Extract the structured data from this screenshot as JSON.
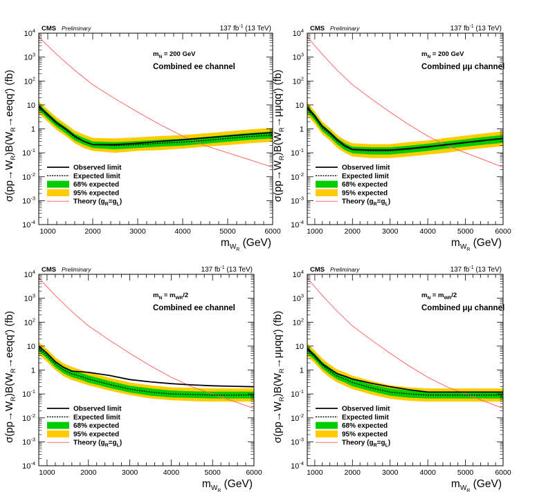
{
  "header": {
    "experiment": "CMS",
    "status": "Preliminary",
    "lumi": "137 fb",
    "lumi_exp": "-1",
    "energy": "(13 TeV)"
  },
  "axis": {
    "xlabel_main": "m",
    "xlabel_sub": "W",
    "xlabel_subsub": "R",
    "xlabel_unit": "(GeV)",
    "xticks": [
      "1000",
      "2000",
      "3000",
      "4000",
      "5000",
      "6000"
    ],
    "yticks": [
      {
        "base": "10",
        "exp": "-4"
      },
      {
        "base": "10",
        "exp": "-3"
      },
      {
        "base": "10",
        "exp": "-2"
      },
      {
        "base": "10",
        "exp": "-1"
      },
      {
        "base": "1",
        "exp": ""
      },
      {
        "base": "10",
        "exp": ""
      },
      {
        "base": "10",
        "exp": "2"
      },
      {
        "base": "10",
        "exp": "3"
      },
      {
        "base": "10",
        "exp": "4"
      }
    ]
  },
  "legend": {
    "observed": "Observed limit",
    "expected": "Expected limit",
    "band68": "68% expected",
    "band95": "95% expected",
    "theory_prefix": "Theory (g",
    "theory_r": "R",
    "theory_mid": "=g",
    "theory_l": "L",
    "theory_suffix": ")"
  },
  "colors": {
    "band68": "#00cc00",
    "band95": "#ffcc00",
    "theory": "#ff6666",
    "observed": "#000000"
  },
  "panels": [
    {
      "mass_main": "m",
      "mass_sub": "N",
      "mass_rest": " = 200 GeV",
      "mass_sub2": "",
      "mass_tail": "",
      "channel": "Combined ee channel",
      "ylabel_a": "σ(pp→W",
      "ylabel_b": "R",
      "ylabel_c": ")B(W",
      "ylabel_d": "R",
      "ylabel_e": "→eeqq",
      "ylabel_f": "') (fb)"
    },
    {
      "mass_main": "m",
      "mass_sub": "N",
      "mass_rest": " = 200 GeV",
      "mass_sub2": "",
      "mass_tail": "",
      "channel": "Combined μμ channel",
      "ylabel_a": "σ(pp→W",
      "ylabel_b": "R",
      "ylabel_c": ")B(W",
      "ylabel_d": "R",
      "ylabel_e": "→μμqq",
      "ylabel_f": "') (fb)"
    },
    {
      "mass_main": "m",
      "mass_sub": "N",
      "mass_rest": " = m",
      "mass_sub2": "WR",
      "mass_tail": "/2",
      "channel": "Combined ee channel",
      "ylabel_a": "σ(pp→W",
      "ylabel_b": "R",
      "ylabel_c": ")B(W",
      "ylabel_d": "R",
      "ylabel_e": "→eeqq",
      "ylabel_f": "') (fb)"
    },
    {
      "mass_main": "m",
      "mass_sub": "N",
      "mass_rest": " = m",
      "mass_sub2": "WR",
      "mass_tail": "/2",
      "channel": "Combined μμ channel",
      "ylabel_a": "σ(pp→W",
      "ylabel_b": "R",
      "ylabel_c": ")B(W",
      "ylabel_d": "R",
      "ylabel_e": "→μμqq",
      "ylabel_f": "') (fb)"
    }
  ],
  "chart_data": [
    {
      "type": "line",
      "xlabel": "m_WR (GeV)",
      "ylabel": "σ(pp→W_R)B(W_R→eeqq') (fb)",
      "xlim": [
        800,
        6000
      ],
      "ylim": [
        0.0001,
        10000
      ],
      "yscale": "log",
      "x": [
        800,
        1000,
        1200,
        1400,
        1600,
        1800,
        2000,
        2500,
        3000,
        3500,
        4000,
        4500,
        5000,
        5500,
        6000
      ],
      "series": [
        {
          "name": "Observed limit",
          "values": [
            9,
            4,
            1.8,
            1,
            0.5,
            0.3,
            0.22,
            0.22,
            0.25,
            0.3,
            0.35,
            0.42,
            0.5,
            0.6,
            0.7
          ]
        },
        {
          "name": "Expected limit",
          "values": [
            8,
            3.5,
            1.6,
            0.9,
            0.45,
            0.3,
            0.22,
            0.2,
            0.22,
            0.25,
            0.28,
            0.33,
            0.4,
            0.48,
            0.55
          ]
        },
        {
          "name": "68% expected",
          "low": [
            6,
            2.6,
            1.2,
            0.65,
            0.33,
            0.22,
            0.16,
            0.14,
            0.16,
            0.18,
            0.2,
            0.24,
            0.29,
            0.35,
            0.4
          ],
          "high": [
            11,
            4.8,
            2.2,
            1.2,
            0.62,
            0.42,
            0.3,
            0.28,
            0.31,
            0.35,
            0.39,
            0.46,
            0.56,
            0.67,
            0.78
          ]
        },
        {
          "name": "95% expected",
          "low": [
            4.5,
            2,
            0.9,
            0.5,
            0.25,
            0.16,
            0.12,
            0.1,
            0.12,
            0.13,
            0.15,
            0.18,
            0.21,
            0.25,
            0.29
          ],
          "high": [
            14,
            6.5,
            3,
            1.6,
            0.85,
            0.58,
            0.42,
            0.4,
            0.44,
            0.5,
            0.55,
            0.65,
            0.78,
            0.95,
            1.1
          ]
        },
        {
          "name": "Theory (g_R=g_L)",
          "values": [
            7000,
            3000,
            1300,
            600,
            280,
            140,
            70,
            18,
            5,
            1.5,
            0.5,
            0.2,
            0.1,
            0.05,
            0.025
          ]
        }
      ]
    },
    {
      "type": "line",
      "xlabel": "m_WR (GeV)",
      "ylabel": "σ(pp→W_R)B(W_R→μμqq') (fb)",
      "xlim": [
        800,
        6000
      ],
      "ylim": [
        0.0001,
        10000
      ],
      "yscale": "log",
      "x": [
        800,
        1000,
        1200,
        1400,
        1600,
        1800,
        2000,
        2500,
        3000,
        3500,
        4000,
        4500,
        5000,
        5500,
        6000
      ],
      "series": [
        {
          "name": "Observed limit",
          "values": [
            8,
            3.5,
            1.3,
            0.7,
            0.35,
            0.2,
            0.14,
            0.13,
            0.13,
            0.15,
            0.18,
            0.22,
            0.27,
            0.33,
            0.4
          ]
        },
        {
          "name": "Expected limit",
          "values": [
            7,
            3,
            1.1,
            0.6,
            0.3,
            0.18,
            0.13,
            0.12,
            0.12,
            0.14,
            0.17,
            0.21,
            0.26,
            0.32,
            0.38
          ]
        },
        {
          "name": "68% expected",
          "low": [
            5,
            2.2,
            0.8,
            0.44,
            0.22,
            0.13,
            0.095,
            0.085,
            0.085,
            0.1,
            0.12,
            0.15,
            0.18,
            0.22,
            0.26
          ],
          "high": [
            9.5,
            4.1,
            1.5,
            0.82,
            0.41,
            0.25,
            0.18,
            0.17,
            0.17,
            0.2,
            0.24,
            0.3,
            0.37,
            0.46,
            0.55
          ]
        },
        {
          "name": "95% expected",
          "low": [
            3.8,
            1.6,
            0.6,
            0.33,
            0.16,
            0.1,
            0.07,
            0.06,
            0.06,
            0.07,
            0.085,
            0.1,
            0.13,
            0.16,
            0.19
          ],
          "high": [
            12.5,
            5.4,
            2,
            1.1,
            0.55,
            0.34,
            0.25,
            0.23,
            0.23,
            0.28,
            0.33,
            0.42,
            0.52,
            0.65,
            0.78
          ]
        },
        {
          "name": "Theory (g_R=g_L)",
          "values": [
            7000,
            3000,
            1300,
            600,
            280,
            140,
            70,
            18,
            5,
            1.5,
            0.5,
            0.2,
            0.1,
            0.05,
            0.025
          ]
        }
      ]
    },
    {
      "type": "line",
      "xlabel": "m_WR (GeV)",
      "ylabel": "σ(pp→W_R)B(W_R→eeqq') (fb)",
      "xlim": [
        800,
        6000
      ],
      "ylim": [
        0.0001,
        10000
      ],
      "yscale": "log",
      "x": [
        800,
        1000,
        1200,
        1400,
        1600,
        1800,
        2000,
        2500,
        3000,
        3500,
        4000,
        4500,
        5000,
        5500,
        6000
      ],
      "series": [
        {
          "name": "Observed limit",
          "values": [
            10,
            5,
            2.2,
            1.3,
            0.9,
            0.85,
            0.8,
            0.6,
            0.4,
            0.32,
            0.27,
            0.24,
            0.22,
            0.21,
            0.2
          ]
        },
        {
          "name": "Expected limit",
          "values": [
            8,
            4,
            1.8,
            1,
            0.7,
            0.55,
            0.42,
            0.25,
            0.16,
            0.12,
            0.1,
            0.095,
            0.09,
            0.09,
            0.09
          ]
        },
        {
          "name": "68% expected",
          "low": [
            6,
            3,
            1.3,
            0.72,
            0.5,
            0.4,
            0.3,
            0.18,
            0.115,
            0.085,
            0.072,
            0.068,
            0.065,
            0.065,
            0.065
          ],
          "high": [
            11,
            5.5,
            2.5,
            1.4,
            0.98,
            0.77,
            0.59,
            0.35,
            0.22,
            0.17,
            0.14,
            0.13,
            0.125,
            0.125,
            0.125
          ]
        },
        {
          "name": "95% expected",
          "low": [
            4.5,
            2.2,
            1,
            0.55,
            0.38,
            0.3,
            0.23,
            0.14,
            0.09,
            0.065,
            0.055,
            0.05,
            0.048,
            0.048,
            0.048
          ],
          "high": [
            15,
            7.5,
            3.4,
            1.9,
            1.35,
            1.05,
            0.8,
            0.48,
            0.3,
            0.23,
            0.19,
            0.18,
            0.17,
            0.17,
            0.17
          ]
        },
        {
          "name": "Theory (g_R=g_L)",
          "values": [
            7000,
            3000,
            1300,
            600,
            280,
            140,
            70,
            18,
            5,
            1.5,
            0.5,
            0.2,
            0.1,
            0.05,
            0.025
          ]
        }
      ]
    },
    {
      "type": "line",
      "xlabel": "m_WR (GeV)",
      "ylabel": "σ(pp→W_R)B(W_R→μμqq') (fb)",
      "xlim": [
        800,
        6000
      ],
      "ylim": [
        0.0001,
        10000
      ],
      "yscale": "log",
      "x": [
        800,
        1000,
        1200,
        1400,
        1600,
        1800,
        2000,
        2500,
        3000,
        3500,
        4000,
        4500,
        5000,
        5500,
        6000
      ],
      "series": [
        {
          "name": "Observed limit",
          "values": [
            8,
            4,
            1.8,
            1.1,
            0.7,
            0.55,
            0.42,
            0.28,
            0.2,
            0.15,
            0.12,
            0.12,
            0.12,
            0.12,
            0.12
          ]
        },
        {
          "name": "Expected limit",
          "values": [
            7,
            3.5,
            1.6,
            0.9,
            0.55,
            0.42,
            0.3,
            0.18,
            0.12,
            0.1,
            0.09,
            0.09,
            0.09,
            0.09,
            0.09
          ]
        },
        {
          "name": "68% expected",
          "low": [
            5,
            2.6,
            1.15,
            0.65,
            0.4,
            0.3,
            0.21,
            0.13,
            0.085,
            0.07,
            0.065,
            0.065,
            0.065,
            0.065,
            0.065
          ],
          "high": [
            9.5,
            4.8,
            2.2,
            1.25,
            0.76,
            0.58,
            0.42,
            0.25,
            0.17,
            0.14,
            0.125,
            0.125,
            0.125,
            0.125,
            0.125
          ]
        },
        {
          "name": "95% expected",
          "low": [
            3.8,
            1.9,
            0.85,
            0.48,
            0.3,
            0.22,
            0.16,
            0.095,
            0.063,
            0.052,
            0.048,
            0.048,
            0.048,
            0.048,
            0.048
          ],
          "high": [
            13,
            6.5,
            3,
            1.7,
            1.05,
            0.8,
            0.58,
            0.35,
            0.23,
            0.19,
            0.17,
            0.17,
            0.17,
            0.17,
            0.17
          ]
        },
        {
          "name": "Theory (g_R=g_L)",
          "values": [
            7000,
            3000,
            1300,
            600,
            280,
            140,
            70,
            18,
            5,
            1.5,
            0.5,
            0.2,
            0.1,
            0.05,
            0.025
          ]
        }
      ]
    }
  ]
}
